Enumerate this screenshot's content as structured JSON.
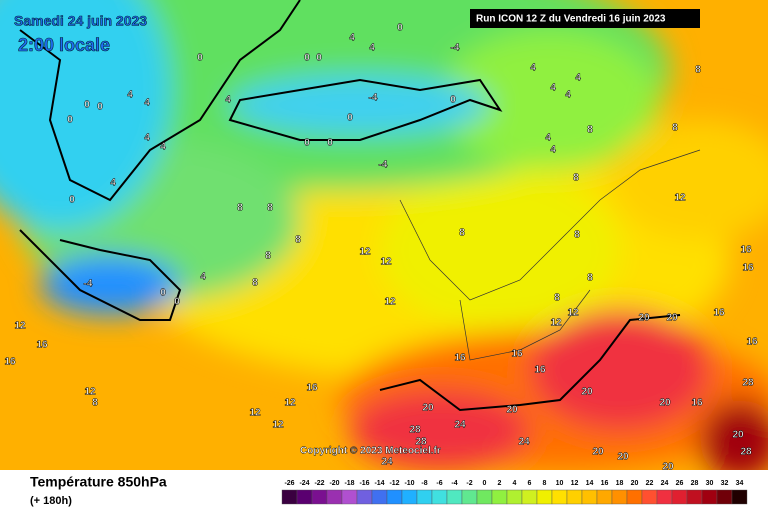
{
  "header": {
    "date": "Samedi 24 juin 2023",
    "time": "2:00 locale",
    "run": "Run ICON 12 Z du Vendredi 16 juin 2023"
  },
  "map": {
    "labels": [
      0,
      0,
      0,
      4,
      4,
      -4,
      0,
      4,
      4,
      8,
      4,
      4,
      -4,
      0,
      4,
      4,
      4,
      0,
      0,
      0,
      0,
      0,
      0,
      4,
      4,
      4,
      0,
      -4,
      4,
      4,
      8,
      8,
      8,
      12,
      8,
      8,
      8,
      8,
      8,
      4,
      -4,
      0,
      0,
      12,
      12,
      8,
      8,
      8,
      8,
      16,
      16,
      12,
      12,
      12,
      16,
      20,
      20,
      12,
      16,
      16,
      16,
      16,
      16,
      16,
      16,
      12,
      8,
      12,
      12,
      12,
      20,
      20,
      16,
      28,
      20,
      20,
      28,
      28,
      24,
      24,
      20,
      20,
      20,
      28,
      24,
      20
    ],
    "copyright": "Copyright © 2023 Meteociel.fr"
  },
  "footer": {
    "title": "Température 850hPa",
    "lead": "(+ 180h)"
  },
  "scale": {
    "labels": [
      -26,
      -24,
      -22,
      -20,
      -18,
      -16,
      -14,
      -12,
      -10,
      -8,
      -6,
      -4,
      -2,
      0,
      2,
      4,
      6,
      8,
      10,
      12,
      14,
      16,
      18,
      20,
      22,
      24,
      26,
      28,
      30,
      32,
      34
    ],
    "colors": [
      "#3a0040",
      "#5a0070",
      "#7a1090",
      "#9a30b0",
      "#b050d0",
      "#7060e0",
      "#4070f0",
      "#2090ff",
      "#20b0ff",
      "#30d0f0",
      "#40e0e0",
      "#50e8c0",
      "#60e890",
      "#70e860",
      "#90f040",
      "#b0f030",
      "#d0f020",
      "#f0f000",
      "#ffe000",
      "#ffd000",
      "#ffc000",
      "#ffa800",
      "#ff9000",
      "#ff7000",
      "#ff5030",
      "#f03040",
      "#e02030",
      "#c01020",
      "#a00010",
      "#700008",
      "#200000"
    ]
  }
}
